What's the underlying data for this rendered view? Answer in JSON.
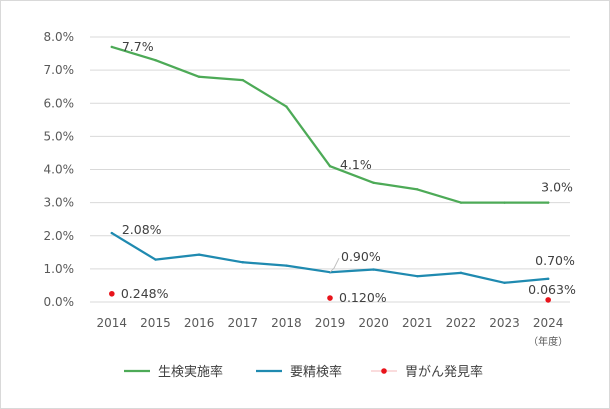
{
  "chart_data": {
    "type": "line",
    "categories": [
      "2014",
      "2015",
      "2016",
      "2017",
      "2018",
      "2019",
      "2020",
      "2021",
      "2022",
      "2023",
      "2024"
    ],
    "x_unit_label": "（年度）",
    "ylim": [
      0,
      8
    ],
    "y_ticks": [
      "0.0%",
      "1.0%",
      "2.0%",
      "3.0%",
      "4.0%",
      "5.0%",
      "6.0%",
      "7.0%",
      "8.0%"
    ],
    "grid": true,
    "legend_position": "bottom",
    "series": [
      {
        "name": "生検実施率",
        "color": "#4daa57",
        "style": "line",
        "values": [
          7.7,
          7.3,
          6.8,
          6.7,
          5.9,
          4.1,
          3.6,
          3.4,
          3.0,
          3.0,
          3.0
        ],
        "labels": [
          {
            "index": 0,
            "text": "7.7%"
          },
          {
            "index": 5,
            "text": "4.1%"
          },
          {
            "index": 10,
            "text": "3.0%"
          }
        ]
      },
      {
        "name": "要精検率",
        "color": "#1f8ab0",
        "style": "line",
        "values": [
          2.08,
          1.28,
          1.43,
          1.2,
          1.1,
          0.9,
          0.98,
          0.78,
          0.88,
          0.58,
          0.7
        ],
        "labels": [
          {
            "index": 0,
            "text": "2.08%"
          },
          {
            "index": 5,
            "text": "0.90%"
          },
          {
            "index": 10,
            "text": "0.70%"
          }
        ]
      },
      {
        "name": "胃がん発見率",
        "color": "#e8141b",
        "style": "point",
        "points": [
          {
            "index": 0,
            "value": 0.248,
            "text": "0.248%"
          },
          {
            "index": 5,
            "value": 0.12,
            "text": "0.120%"
          },
          {
            "index": 10,
            "value": 0.063,
            "text": "0.063%"
          }
        ]
      }
    ]
  }
}
